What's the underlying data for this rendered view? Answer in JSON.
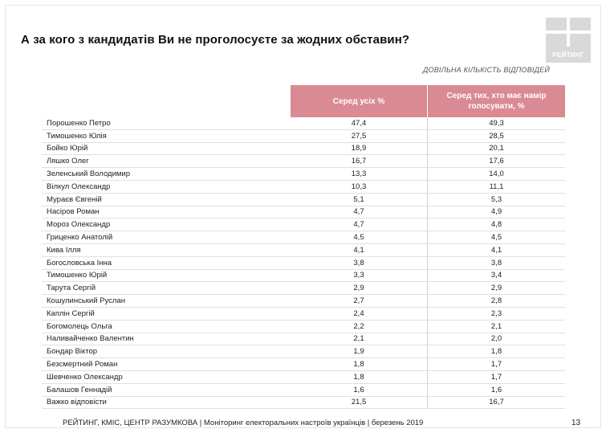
{
  "title": "А за кого з кандидатів Ви не проголосуєте за жодних обставин?",
  "logo_text": "РЕЙТИНГ",
  "subtitle": "ДОВІЛЬНА КІЛЬКІСТЬ ВІДПОВІДЕЙ",
  "table": {
    "col1_header": "Серед усіх %",
    "col2_header": "Серед тих, хто має намір голосувати, %",
    "rows": [
      {
        "name": "Порошенко Петро",
        "v1": "47,4",
        "v2": "49,3"
      },
      {
        "name": "Тимошенко Юлія",
        "v1": "27,5",
        "v2": "28,5"
      },
      {
        "name": "Бойко Юрій",
        "v1": "18,9",
        "v2": "20,1"
      },
      {
        "name": "Ляшко Олег",
        "v1": "16,7",
        "v2": "17,6"
      },
      {
        "name": "Зеленський Володимир",
        "v1": "13,3",
        "v2": "14,0"
      },
      {
        "name": "Вілкул Олександр",
        "v1": "10,3",
        "v2": "11,1"
      },
      {
        "name": "Мураєв Євгеній",
        "v1": "5,1",
        "v2": "5,3"
      },
      {
        "name": "Насіров Роман",
        "v1": "4,7",
        "v2": "4,9"
      },
      {
        "name": "Мороз Олександр",
        "v1": "4,7",
        "v2": "4,8"
      },
      {
        "name": "Гриценко Анатолій",
        "v1": "4,5",
        "v2": "4,5"
      },
      {
        "name": "Кива Ілля",
        "v1": "4,1",
        "v2": "4,1"
      },
      {
        "name": "Богословська Інна",
        "v1": "3,8",
        "v2": "3,8"
      },
      {
        "name": "Тимошенко Юрій",
        "v1": "3,3",
        "v2": "3,4"
      },
      {
        "name": "Тарута Сергій",
        "v1": "2,9",
        "v2": "2,9"
      },
      {
        "name": "Кошулинський Руслан",
        "v1": "2,7",
        "v2": "2,8"
      },
      {
        "name": "Каплін Сергій",
        "v1": "2,4",
        "v2": "2,3"
      },
      {
        "name": "Богомолець Ольга",
        "v1": "2,2",
        "v2": "2,1"
      },
      {
        "name": "Наливайченко Валентин",
        "v1": "2,1",
        "v2": "2,0"
      },
      {
        "name": "Бондар Віктор",
        "v1": "1,9",
        "v2": "1,8"
      },
      {
        "name": "Безсмертний Роман",
        "v1": "1,8",
        "v2": "1,7"
      },
      {
        "name": "Шевченко Олександр",
        "v1": "1,8",
        "v2": "1,7"
      },
      {
        "name": "Балашов Геннадій",
        "v1": "1,6",
        "v2": "1,6"
      },
      {
        "name": "Важко відповісти",
        "v1": "21,5",
        "v2": "16,7"
      }
    ]
  },
  "footer": "РЕЙТИНГ, КМІС, ЦЕНТР РАЗУМКОВА  | Моніторинг електоральних настроїв українців | березень 2019",
  "page_number": "13"
}
